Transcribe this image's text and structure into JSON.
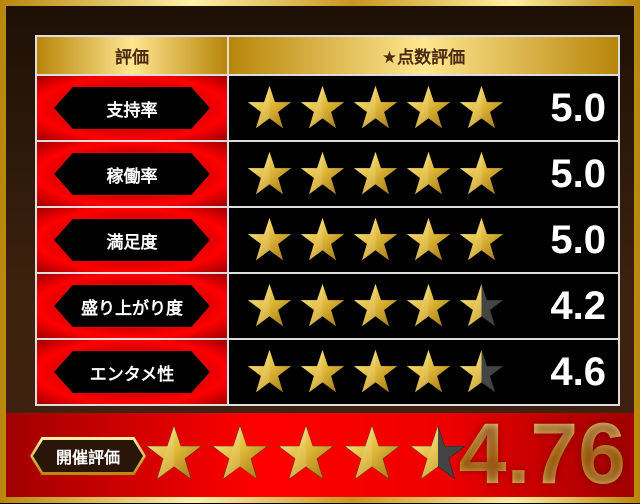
{
  "header": {
    "col1": "評価",
    "col2": "★点数評価"
  },
  "rows": [
    {
      "label": "支持率",
      "rating": 5.0,
      "score": "5.0"
    },
    {
      "label": "稼働率",
      "rating": 5.0,
      "score": "5.0"
    },
    {
      "label": "満足度",
      "rating": 5.0,
      "score": "5.0"
    },
    {
      "label": "盛り上がり度",
      "rating": 4.2,
      "score": "4.2"
    },
    {
      "label": "エンタメ性",
      "rating": 4.6,
      "score": "4.6"
    }
  ],
  "overall": {
    "label": "開催評価",
    "rating": 4.76,
    "score": "4.76"
  },
  "colors": {
    "gold": "#e8c040",
    "empty_star": "#444444",
    "red": "#ee0000"
  },
  "icons": {
    "star": "star-icon"
  }
}
